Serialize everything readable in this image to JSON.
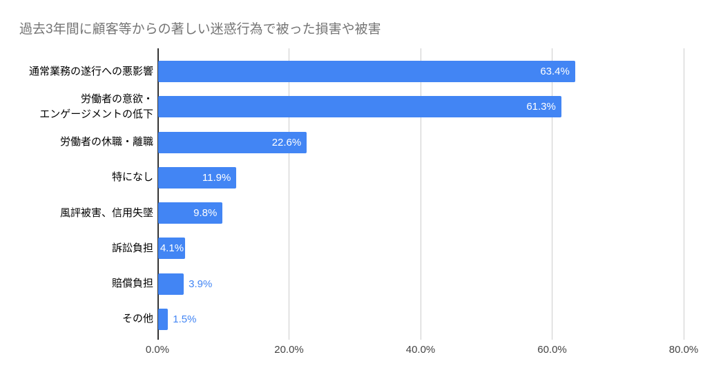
{
  "title": "過去3年間に顧客等からの著しい迷惑行為で被った損害や被害",
  "colors": {
    "bar": "#4285f4",
    "title_text": "#757575",
    "axis_line": "#333333",
    "gridline": "#cccccc",
    "tick_label": "#444444",
    "value_label_inside": "#ffffff",
    "value_label_outside": "#4285f4",
    "category_label": "#000000",
    "background": "#ffffff"
  },
  "chart_data": {
    "type": "bar",
    "orientation": "horizontal",
    "title": "過去3年間に顧客等からの著しい迷惑行為で被った損害や被害",
    "categories": [
      "通常業務の遂行への悪影響",
      "労働者の意欲・\nエンゲージメントの低下",
      "労働者の休職・離職",
      "特になし",
      "風評被害、信用失墜",
      "訴訟負担",
      "賠償負担",
      "その他"
    ],
    "values": [
      63.4,
      61.3,
      22.6,
      11.9,
      9.8,
      4.1,
      3.9,
      1.5
    ],
    "value_labels": [
      "63.4%",
      "61.3%",
      "22.6%",
      "11.9%",
      "9.8%",
      "4.1%",
      "3.9%",
      "1.5%"
    ],
    "xlabel": "",
    "ylabel": "",
    "xlim": [
      0,
      80
    ],
    "x_ticks": [
      "0.0%",
      "20.0%",
      "40.0%",
      "60.0%",
      "80.0%"
    ],
    "x_tick_values": [
      0,
      20,
      40,
      60,
      80
    ],
    "grid": true,
    "legend": "none"
  }
}
